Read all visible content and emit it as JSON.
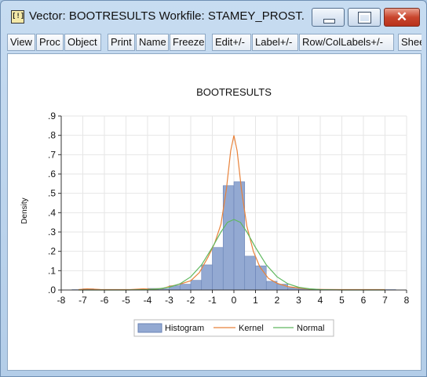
{
  "window": {
    "title": "Vector: BOOTRESULTS   Workfile: STAMEY_PROST...",
    "icon": "vector-icon",
    "close_glyph": "✕"
  },
  "toolbar": {
    "buttons": [
      "View",
      "Proc",
      "Object",
      "Print",
      "Name",
      "Freeze",
      "Edit+/-",
      "Label+/-",
      "Row/ColLabels+/-",
      "Shee"
    ]
  },
  "colors": {
    "histogram_fill": "#93a9d2",
    "histogram_stroke": "#6a83b6",
    "kernel": "#e8823a",
    "normal": "#5fb85f"
  },
  "chart_data": {
    "type": "bar",
    "title": "BOOTRESULTS",
    "ylabel": "Density",
    "xlabel": "",
    "xlim": [
      -8,
      8
    ],
    "ylim": [
      0,
      0.9
    ],
    "xticks": [
      -8,
      -7,
      -6,
      -5,
      -4,
      -3,
      -2,
      -1,
      0,
      1,
      2,
      3,
      4,
      5,
      6,
      7,
      8
    ],
    "xtick_labels": [
      "-8",
      "-7",
      "-6",
      "-5",
      "-4",
      "-3",
      "-2",
      "-1",
      "0",
      "1",
      "2",
      "3",
      "4",
      "5",
      "6",
      "7",
      "8"
    ],
    "yticks": [
      0,
      0.1,
      0.2,
      0.3,
      0.4,
      0.5,
      0.6,
      0.7,
      0.8,
      0.9
    ],
    "ytick_labels": [
      ".0",
      ".1",
      ".2",
      ".3",
      ".4",
      ".5",
      ".6",
      ".7",
      ".8",
      ".9"
    ],
    "grid": true,
    "legend_position": "bottom",
    "histogram": {
      "name": "Histogram",
      "bin_width": 0.5,
      "bin_starts": [
        -7.5,
        -7.0,
        -6.5,
        -6.0,
        -5.5,
        -5.0,
        -4.5,
        -4.0,
        -3.5,
        -3.0,
        -2.5,
        -2.0,
        -1.5,
        -1.0,
        -0.5,
        0.0,
        0.5,
        1.0,
        1.5,
        2.0,
        2.5,
        3.0,
        3.5,
        4.0,
        4.5,
        5.0,
        5.5,
        6.0,
        6.5,
        7.0
      ],
      "values": [
        0.002,
        0.006,
        0.002,
        0.002,
        0.0,
        0.002,
        0.002,
        0.008,
        0.006,
        0.022,
        0.03,
        0.05,
        0.13,
        0.22,
        0.54,
        0.56,
        0.175,
        0.125,
        0.045,
        0.03,
        0.012,
        0.006,
        0.002,
        0.002,
        0.002,
        0.002,
        0.002,
        0.002,
        0.002,
        0.002
      ]
    },
    "series": [
      {
        "name": "Kernel",
        "x": [
          -7.2,
          -6.8,
          -6.2,
          -5.5,
          -4.8,
          -4.2,
          -3.8,
          -3.3,
          -3.0,
          -2.5,
          -2.0,
          -1.6,
          -1.2,
          -0.9,
          -0.6,
          -0.35,
          -0.15,
          0.0,
          0.15,
          0.35,
          0.6,
          0.9,
          1.2,
          1.6,
          2.0,
          2.5,
          3.0,
          3.5,
          4.2,
          5.0,
          6.0,
          7.0
        ],
        "y": [
          0.002,
          0.006,
          0.003,
          0.002,
          0.002,
          0.006,
          0.004,
          0.008,
          0.018,
          0.03,
          0.048,
          0.09,
          0.17,
          0.24,
          0.34,
          0.52,
          0.72,
          0.8,
          0.72,
          0.52,
          0.33,
          0.2,
          0.12,
          0.06,
          0.035,
          0.018,
          0.01,
          0.005,
          0.003,
          0.002,
          0.002,
          0.002
        ]
      },
      {
        "name": "Normal",
        "x": [
          -7.2,
          -6.0,
          -5.0,
          -4.0,
          -3.5,
          -3.0,
          -2.5,
          -2.0,
          -1.5,
          -1.0,
          -0.6,
          -0.3,
          0.0,
          0.3,
          0.6,
          1.0,
          1.5,
          2.0,
          2.5,
          3.0,
          3.5,
          4.0,
          5.0,
          6.0,
          7.0
        ],
        "y": [
          0.0,
          0.0,
          0.0,
          0.002,
          0.006,
          0.014,
          0.032,
          0.068,
          0.13,
          0.22,
          0.3,
          0.35,
          0.365,
          0.35,
          0.3,
          0.22,
          0.13,
          0.068,
          0.032,
          0.014,
          0.006,
          0.002,
          0.0,
          0.0,
          0.0
        ]
      }
    ]
  }
}
